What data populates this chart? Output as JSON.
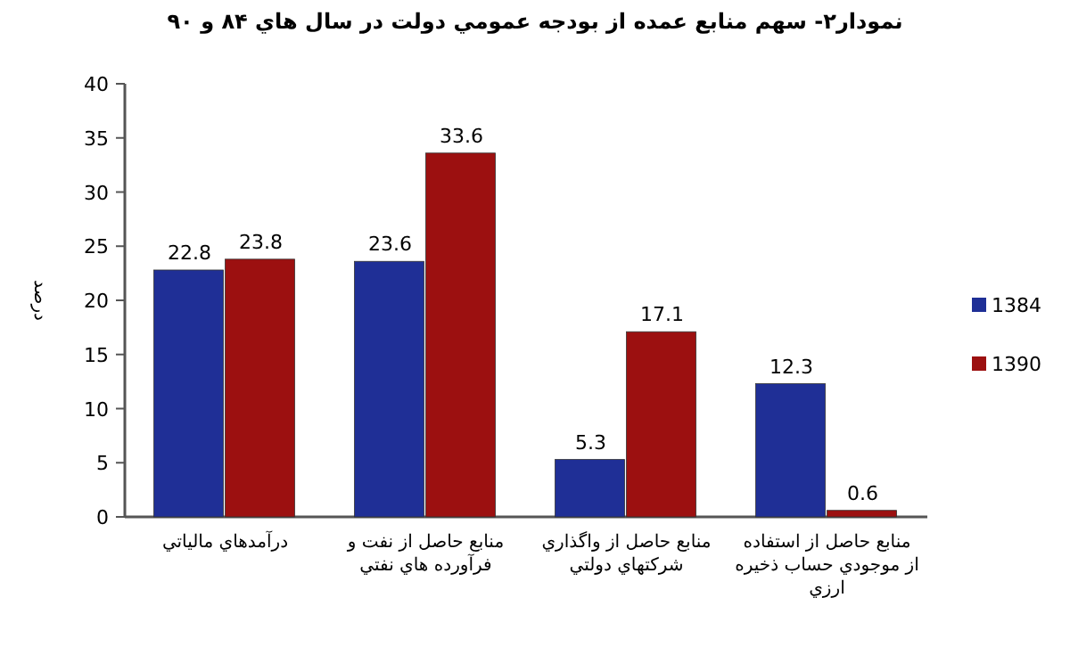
{
  "chart_data": {
    "type": "bar",
    "title": "نمودار۲- سهم منابع عمده از بودجه عمومي دولت در سال هاي ۸۴ و ۹۰",
    "ylabel": "درصد",
    "categories": [
      "درآمدهاي مالياتي",
      "منابع حاصل از نفت و فرآورده هاي نفتي",
      "منابع حاصل از واگذاري شركتهاي دولتي",
      "منابع حاصل از استفاده از موجودي حساب ذخيره ارزي"
    ],
    "series": [
      {
        "name": "1384",
        "color": "#1f2f96",
        "values": [
          22.8,
          23.6,
          5.3,
          12.3
        ]
      },
      {
        "name": "1390",
        "color": "#9c1010",
        "values": [
          23.8,
          33.6,
          17.1,
          0.6
        ]
      }
    ],
    "ylim": [
      0,
      40
    ],
    "yticks": [
      0,
      5,
      10,
      15,
      20,
      25,
      30,
      35,
      40
    ],
    "data_labels": true,
    "legend": "right",
    "grid": false
  }
}
